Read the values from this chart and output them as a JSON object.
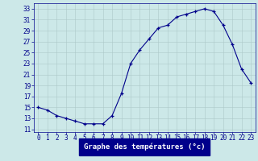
{
  "hours": [
    0,
    1,
    2,
    3,
    4,
    5,
    6,
    7,
    8,
    9,
    10,
    11,
    12,
    13,
    14,
    15,
    16,
    17,
    18,
    19,
    20,
    21,
    22,
    23
  ],
  "temperatures": [
    15,
    14.5,
    13.5,
    13,
    12.5,
    12,
    12,
    12,
    13.5,
    17.5,
    23,
    25.5,
    27.5,
    29.5,
    30,
    31.5,
    32,
    32.5,
    33,
    32.5,
    30,
    26.5,
    22,
    19.5
  ],
  "bg_color": "#cce8e8",
  "line_color": "#00008b",
  "marker": "+",
  "grid_color": "#adc8c8",
  "ylabel_ticks": [
    11,
    13,
    15,
    17,
    19,
    21,
    23,
    25,
    27,
    29,
    31,
    33
  ],
  "xlabel": "Graphe des températures (°c)",
  "xlabel_bg": "#00008b",
  "xlabel_fg": "#ffffff",
  "ylim": [
    10.5,
    34
  ],
  "xlim": [
    -0.5,
    23.5
  ],
  "tick_fontsize": 5.5,
  "label_fontsize": 6.5
}
